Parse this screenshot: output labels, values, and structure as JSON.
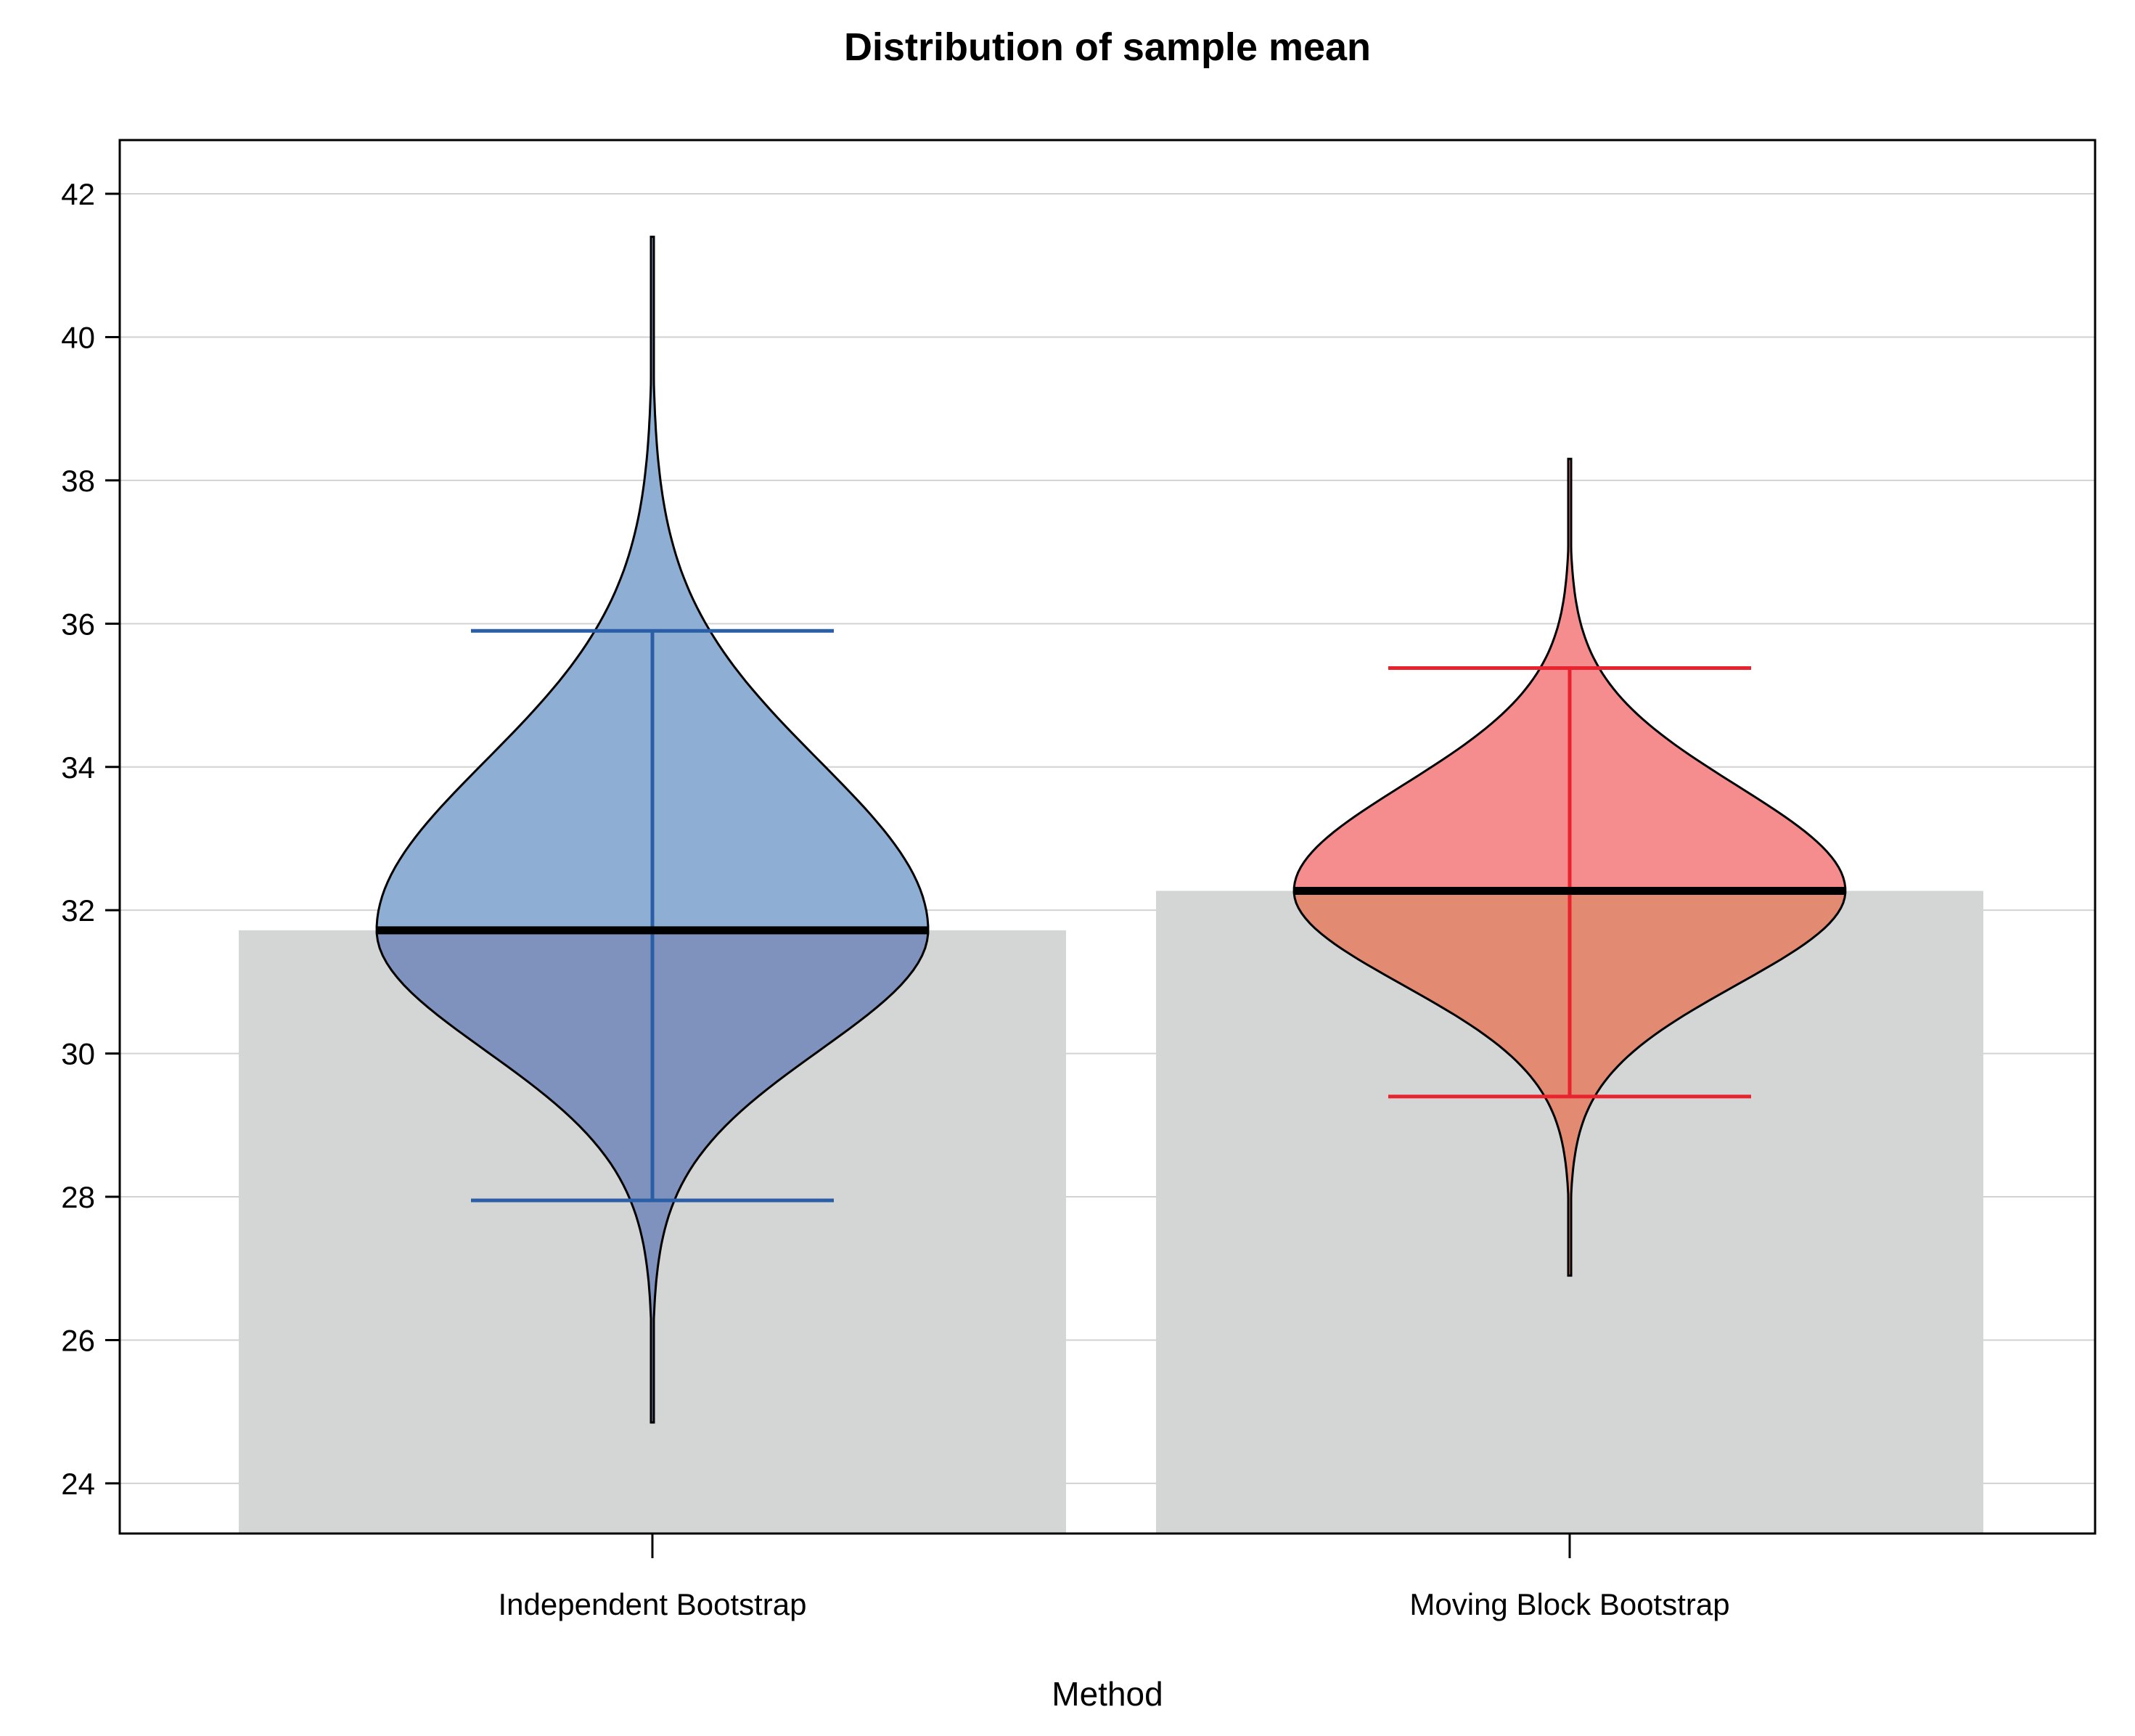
{
  "chart_data": {
    "type": "violin",
    "title": "Distribution of sample mean",
    "xlabel": "Method",
    "ylabel": "",
    "ylim": [
      23.3,
      42.75
    ],
    "yticks": [
      24,
      26,
      28,
      30,
      32,
      34,
      36,
      38,
      40,
      42
    ],
    "grid": true,
    "categories": [
      "Independent Bootstrap",
      "Moving Block Bootstrap"
    ],
    "series": [
      {
        "name": "Independent Bootstrap",
        "mean": 31.72,
        "ci_lower": 27.95,
        "ci_upper": 35.9,
        "min": 24.85,
        "max": 41.4,
        "bar_value": 31.72,
        "colors": {
          "upper": "#8faed4",
          "lower": "#7f91bd",
          "ci": "#2a5fa8"
        }
      },
      {
        "name": "Moving Block Bootstrap",
        "mean": 32.27,
        "ci_lower": 29.4,
        "ci_upper": 35.38,
        "min": 26.9,
        "max": 38.3,
        "bar_value": 32.27,
        "colors": {
          "upper": "#f58d8f",
          "lower": "#e38a72",
          "ci": "#e8232d"
        }
      }
    ],
    "colors": {
      "bar": "#d4d5d5",
      "grid": "#d2d2d2",
      "outline": "#000000",
      "mean_line": "#000000"
    }
  }
}
